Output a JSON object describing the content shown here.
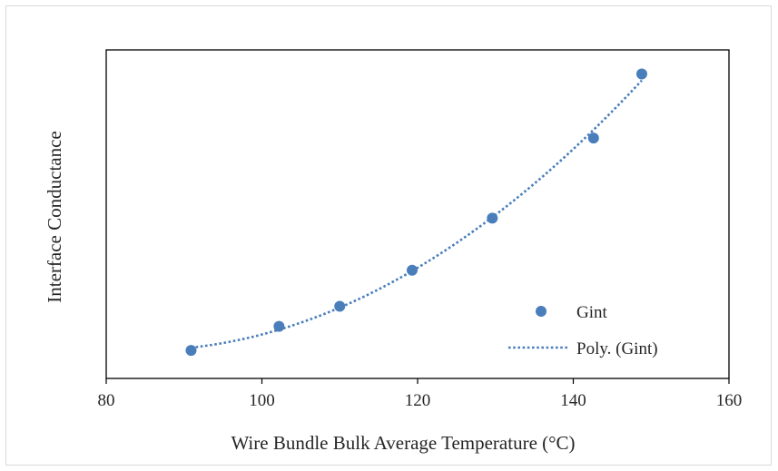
{
  "chart_data": {
    "type": "scatter",
    "title": "",
    "xlabel": "Wire Bundle Bulk Average Temperature (°C)",
    "ylabel": "Interface Conductance",
    "xlim": [
      80,
      160
    ],
    "x_ticks": [
      "80",
      "100",
      "120",
      "140",
      "160"
    ],
    "y_tick_labels_shown": false,
    "grid": false,
    "legend_position": "bottom-right",
    "series": [
      {
        "name": "Gint",
        "kind": "markers",
        "color": "#4a7ebb",
        "x": [
          90.9,
          102.2,
          110.0,
          119.3,
          129.6,
          142.6,
          148.8
        ],
        "y": [
          0.07,
          0.13,
          0.18,
          0.27,
          0.4,
          0.6,
          0.76
        ]
      },
      {
        "name": "Poly. (Gint)",
        "kind": "polynomial-trendline",
        "line_style": "dotted",
        "color": "#4a7ebb"
      }
    ]
  }
}
